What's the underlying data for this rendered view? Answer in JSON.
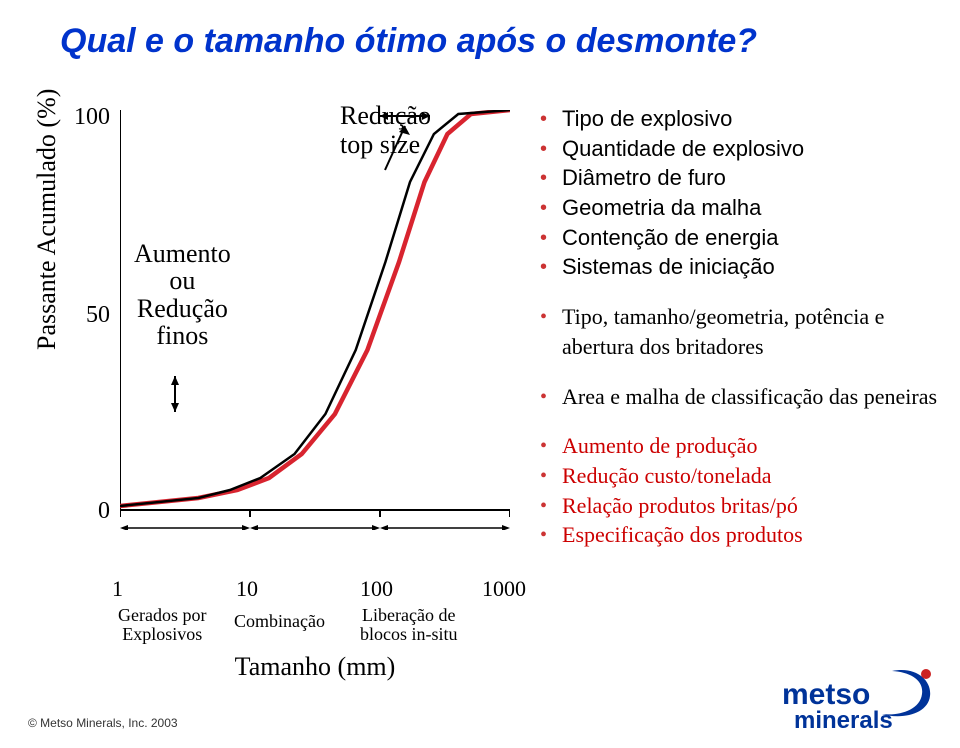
{
  "title": "Qual e o tamanho ótimo após o desmonte?",
  "chart": {
    "type": "line",
    "ylabel": "Passante Acumulado (%)",
    "xlabel": "Tamanho (mm)",
    "yticks": [
      {
        "label": "100",
        "value": 100
      },
      {
        "label": "50",
        "value": 50
      },
      {
        "label": "0",
        "value": 0
      }
    ],
    "xticks": [
      {
        "label": "1",
        "value": 1
      },
      {
        "label": "10",
        "value": 10
      },
      {
        "label": "100",
        "value": 100
      },
      {
        "label": "1000",
        "value": 1000
      }
    ],
    "xlim": [
      1,
      1000
    ],
    "ylim": [
      0,
      100
    ],
    "xscale": "log",
    "background_color": "#ffffff",
    "axis_color": "#000000",
    "series": [
      {
        "name": "curve-red",
        "color": "#d8242f",
        "width": 4.5,
        "points": [
          [
            1,
            1
          ],
          [
            2,
            2
          ],
          [
            4,
            3
          ],
          [
            8,
            5
          ],
          [
            14,
            8
          ],
          [
            25,
            14
          ],
          [
            45,
            24
          ],
          [
            80,
            40
          ],
          [
            140,
            62
          ],
          [
            220,
            82
          ],
          [
            330,
            94
          ],
          [
            500,
            99
          ],
          [
            1000,
            100
          ]
        ]
      },
      {
        "name": "curve-black",
        "color": "#000000",
        "width": 2.5,
        "points": [
          [
            1,
            1
          ],
          [
            2,
            2
          ],
          [
            4,
            3
          ],
          [
            7,
            5
          ],
          [
            12,
            8
          ],
          [
            22,
            14
          ],
          [
            38,
            24
          ],
          [
            65,
            40
          ],
          [
            110,
            62
          ],
          [
            170,
            82
          ],
          [
            260,
            94
          ],
          [
            400,
            99
          ],
          [
            1000,
            100
          ]
        ]
      }
    ],
    "annotations": {
      "reduce_top": {
        "line1": "Redução",
        "line2": "top size"
      },
      "aumento_finos": {
        "line1": "Aumento",
        "line2": "ou",
        "line3": "Redução",
        "line4": "finos"
      },
      "gerados": {
        "line1": "Gerados por",
        "line2": "Explosivos"
      },
      "comb": "Combinação",
      "lib": {
        "line1": "Liberação de",
        "line2": "blocos in-situ"
      }
    },
    "x_range_arrows_color": "#000000"
  },
  "bullets": {
    "group1": [
      "Tipo de explosivo",
      "Quantidade de explosivo",
      "Diâmetro de furo",
      "Geometria da malha",
      "Contenção de energia",
      "Sistemas de iniciação"
    ],
    "group2": [
      "Tipo, tamanho/geometria, potência e abertura dos britadores"
    ],
    "group3": [
      "Area e malha de classificação das peneiras"
    ],
    "group4": [
      "Aumento de produção",
      "Redução custo/tonelada",
      "Relação produtos britas/pó",
      "Especificação dos produtos"
    ]
  },
  "footer": "© Metso Minerals, Inc. 2003",
  "logo": {
    "text_top": "metso",
    "text_bottom": "minerals",
    "color": "#003399",
    "accent": "#cc2222"
  }
}
